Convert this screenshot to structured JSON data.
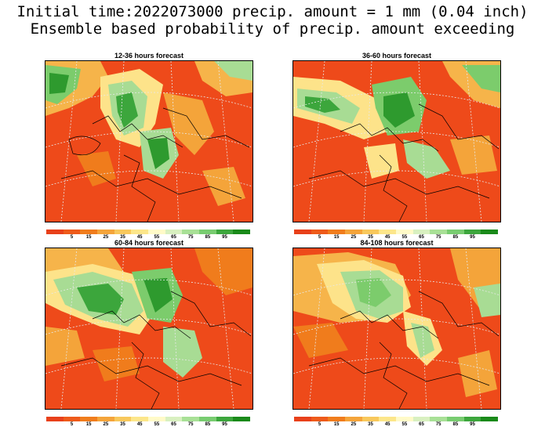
{
  "title_line1": "Initial time:2022073000 precip. amount = 1 mm (0.04 inch)",
  "title_line2": "Ensemble based probability of precip. amount exceeding",
  "panels": [
    {
      "title": "12-36 hours forecast"
    },
    {
      "title": "36-60 hours forecast"
    },
    {
      "title": "60-84 hours forecast"
    },
    {
      "title": "84-108 hours forecast"
    }
  ],
  "colorbar": {
    "colors": [
      "#e8401a",
      "#ee5a1a",
      "#f07c1c",
      "#f4a43a",
      "#f8c85c",
      "#fce68a",
      "#fffac8",
      "#d8f0c0",
      "#a8e096",
      "#78cc70",
      "#3ca63c",
      "#1a8a1a"
    ],
    "labels": [
      "5",
      "15",
      "25",
      "35",
      "45",
      "55",
      "65",
      "75",
      "85",
      "95"
    ]
  }
}
